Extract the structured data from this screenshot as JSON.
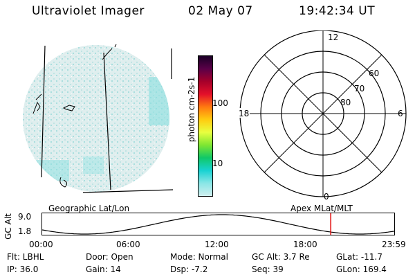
{
  "header": {
    "instrument": "Ultraviolet Imager",
    "date": "02 May 07",
    "time": "19:42:34 UT"
  },
  "colorbar": {
    "label": "photon cm-2s-1",
    "ticks": [
      "100",
      "10"
    ],
    "colors": [
      "#1a0026",
      "#5a0048",
      "#a6002a",
      "#e4102a",
      "#ff7a10",
      "#ffcc10",
      "#e8ff40",
      "#7ee632",
      "#10c868",
      "#18d2d2",
      "#8ae6e6",
      "#cfeeee"
    ]
  },
  "polar_plot": {
    "mlt_labels": {
      "top": "12",
      "left": "18",
      "right": "6",
      "bottom": "0"
    },
    "lat_labels": [
      "60",
      "70",
      "80"
    ]
  },
  "labels": {
    "left_projection": "Geographic Lat/Lon",
    "right_projection": "Apex MLat/MLT"
  },
  "altitude_plot": {
    "ylabel": "GC Alt",
    "ymax_label": "9.0",
    "ymin_label": "1.8",
    "x_ticks": [
      "00:00",
      "06:00",
      "12:00",
      "18:00",
      "23:59"
    ],
    "current_time_fraction": 0.818
  },
  "info": {
    "filter": "Flt: LBHL",
    "ip": "IP: 36.0",
    "door": "Door: Open",
    "gain": "Gain: 14",
    "mode": "Mode: Normal",
    "dsp": "Dsp:    -7.2",
    "gc_alt": "GC Alt: 3.7 Re",
    "seq": "Seq: 39",
    "glat": "GLat: -11.7",
    "glon": "GLon: 169.4"
  }
}
